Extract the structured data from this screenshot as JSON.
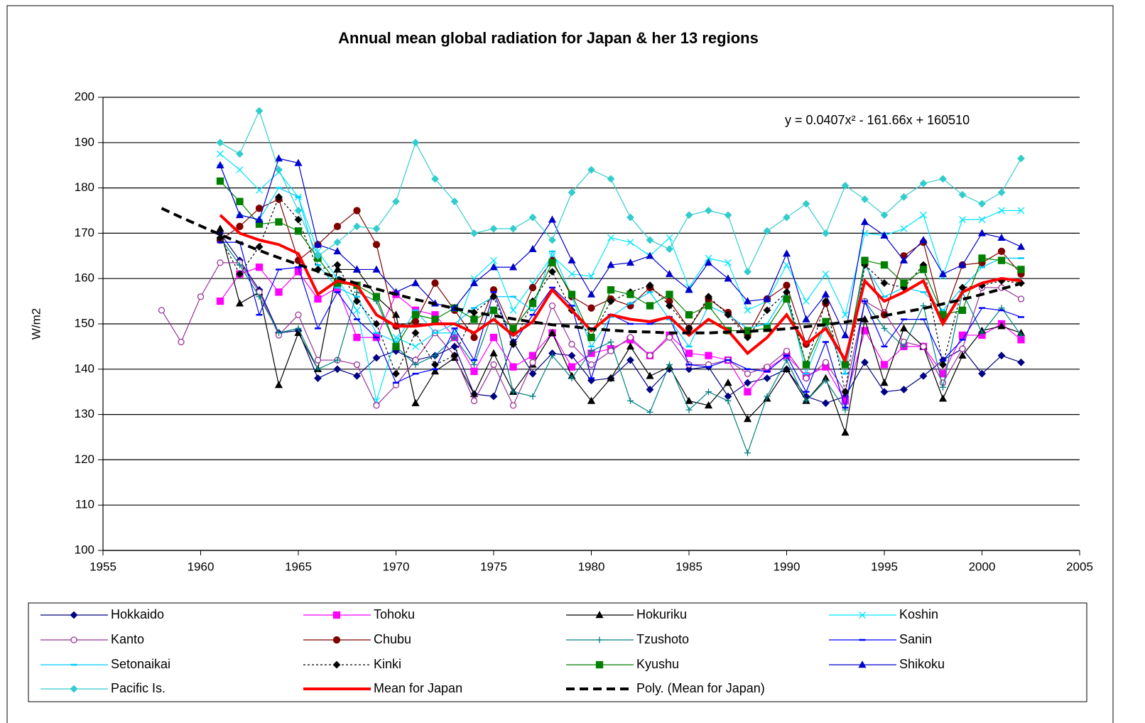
{
  "chart_data": {
    "type": "line",
    "title": "Annual mean global radiation for Japan & her 13 regions",
    "y_label": "W/m2",
    "annotation": "y = 0.0407x² - 161.66x + 160510",
    "xlim": [
      1955,
      2005
    ],
    "xticks": [
      1955,
      1960,
      1965,
      1970,
      1975,
      1980,
      1985,
      1990,
      1995,
      2000,
      2005
    ],
    "ylim": [
      100,
      200
    ],
    "yticks": [
      100,
      110,
      120,
      130,
      140,
      150,
      160,
      170,
      180,
      190,
      200
    ],
    "grid": true,
    "legend": "bottom",
    "x": [
      1958,
      1959,
      1960,
      1961,
      1962,
      1963,
      1964,
      1965,
      1966,
      1967,
      1968,
      1969,
      1970,
      1971,
      1972,
      1973,
      1974,
      1975,
      1976,
      1977,
      1978,
      1979,
      1980,
      1981,
      1982,
      1983,
      1984,
      1985,
      1986,
      1987,
      1988,
      1989,
      1990,
      1991,
      1992,
      1993,
      1994,
      1995,
      1996,
      1997,
      1998,
      1999,
      2000,
      2001,
      2002
    ],
    "series": [
      {
        "name": "Hokkaido",
        "color": "#000080",
        "marker": "diamond",
        "values": [
          null,
          null,
          null,
          170,
          164,
          157.5,
          148,
          148.5,
          138,
          140,
          138.5,
          142.5,
          144,
          142,
          143,
          145,
          134.5,
          134,
          146,
          139,
          143.5,
          143,
          137.5,
          138,
          142,
          135.5,
          140,
          140,
          140.5,
          134,
          137,
          138,
          140,
          134,
          132.5,
          134,
          141.5,
          135,
          135.5,
          138.5,
          142,
          144.5,
          139,
          143,
          141.5
        ]
      },
      {
        "name": "Tohoku",
        "color": "#ff00ff",
        "marker": "square",
        "values": [
          null,
          null,
          null,
          155,
          161,
          162.5,
          157,
          161.5,
          155.5,
          158,
          147,
          147,
          156.5,
          153,
          152,
          147,
          139.5,
          147,
          140.5,
          143,
          148,
          140.5,
          143.5,
          144.5,
          146.5,
          143,
          147.5,
          143.5,
          143,
          142,
          135,
          140,
          143,
          138.5,
          140.5,
          133,
          148.5,
          141,
          145,
          145,
          139,
          147.5,
          147.5,
          150,
          146.5
        ]
      },
      {
        "name": "Hokuriku",
        "color": "#000000",
        "marker": "triangle",
        "values": [
          null,
          null,
          null,
          171,
          154.5,
          157,
          136.5,
          148,
          140,
          162,
          162,
          156,
          152,
          132.5,
          139.5,
          142.5,
          134.5,
          143.5,
          135,
          141,
          148,
          138.5,
          133,
          138,
          145,
          138.5,
          140.5,
          133,
          132,
          137,
          129,
          133.5,
          140,
          133,
          138,
          126,
          151,
          137,
          149,
          145,
          133.5,
          143,
          148.5,
          149.5,
          148
        ]
      },
      {
        "name": "Koshin",
        "color": "#00e5ff",
        "marker": "cross",
        "values": [
          null,
          null,
          null,
          187.5,
          184,
          179.5,
          183.5,
          178,
          166,
          160,
          153,
          133,
          147,
          145,
          148,
          148,
          160,
          164,
          153,
          159,
          165,
          161,
          160.5,
          169,
          168,
          165,
          169,
          158,
          164.5,
          163.5,
          153,
          155,
          163,
          155,
          161,
          152,
          170,
          169.5,
          171,
          174,
          160.5,
          173,
          173,
          175,
          175
        ]
      },
      {
        "name": "Kanto",
        "color": "#993399",
        "marker": "circle-open",
        "values": [
          153,
          146,
          156,
          163.5,
          163.5,
          157,
          147.5,
          152,
          142,
          142,
          141,
          132,
          136.5,
          142,
          148,
          143,
          133,
          141,
          132,
          141.5,
          154,
          145.5,
          141,
          144,
          147,
          143,
          147,
          141,
          141,
          142,
          139,
          140.5,
          144,
          138,
          141.5,
          135,
          155,
          152.5,
          146,
          145,
          137,
          144.5,
          158,
          158,
          155.5
        ]
      },
      {
        "name": "Chubu",
        "color": "#800000",
        "marker": "circle",
        "values": [
          null,
          null,
          null,
          168.5,
          171.5,
          175.5,
          177.5,
          164,
          167.5,
          171.5,
          175,
          167.5,
          149.5,
          150.5,
          159,
          153,
          147,
          157.5,
          148,
          158,
          164,
          156,
          153.5,
          155.5,
          154,
          158,
          155,
          149,
          155.5,
          152.5,
          147.5,
          155.5,
          158.5,
          145.5,
          154.5,
          141,
          164,
          152,
          165,
          168,
          151,
          163,
          163.5,
          166,
          161
        ]
      },
      {
        "name": "Tzushoto",
        "color": "#008080",
        "marker": "plus",
        "values": [
          null,
          null,
          null,
          169,
          163,
          156,
          148,
          149,
          140,
          142,
          157,
          155,
          145,
          141,
          143,
          147,
          141,
          153,
          135,
          134,
          143,
          138,
          144,
          146,
          133,
          130.5,
          141,
          131,
          135,
          133,
          121.5,
          134,
          142,
          133,
          137.5,
          131,
          155,
          149,
          145,
          154,
          136,
          157,
          148,
          153.5,
          147.5
        ]
      },
      {
        "name": "Sanin",
        "color": "#0000ff",
        "marker": "dash",
        "values": [
          null,
          null,
          null,
          168,
          168,
          152,
          162,
          162.5,
          149,
          157,
          151,
          147,
          137,
          139,
          140,
          149,
          142,
          157,
          145.5,
          152,
          158,
          154,
          138,
          152,
          150,
          150,
          151.5,
          141,
          140.5,
          142,
          140,
          139.5,
          143,
          135,
          146,
          131.5,
          155,
          145,
          151,
          151,
          142,
          146.5,
          153.5,
          153,
          151.5
        ]
      },
      {
        "name": "Setonaikai",
        "color": "#00ccff",
        "marker": "dash",
        "values": [
          null,
          null,
          null,
          185,
          174,
          173,
          180,
          178,
          163,
          158,
          156,
          148,
          146,
          153,
          148,
          150,
          153.5,
          156,
          156,
          153,
          166,
          156,
          145,
          151.5,
          154.5,
          157,
          151,
          145,
          154,
          152,
          149,
          150,
          157,
          139,
          150,
          139,
          163,
          156,
          158,
          157,
          153,
          158,
          162.5,
          164.5,
          164.5
        ]
      },
      {
        "name": "Kinki",
        "color": "#000000",
        "marker": "diamond",
        "line_style": "dashed",
        "values": [
          null,
          null,
          null,
          169,
          161,
          167,
          178,
          173,
          162,
          163,
          155,
          150,
          139,
          148,
          141,
          143,
          152.5,
          156,
          145.5,
          155,
          161.5,
          153,
          147,
          155,
          157,
          158.5,
          154,
          149,
          156,
          152,
          147,
          153,
          157,
          141,
          155,
          135,
          163,
          159,
          158,
          163,
          141,
          158,
          158.5,
          159.5,
          159
        ]
      },
      {
        "name": "Kyushu",
        "color": "#008000",
        "marker": "square",
        "values": [
          null,
          null,
          null,
          181.5,
          177,
          172,
          172.5,
          170.5,
          164.5,
          159,
          158.5,
          156,
          145,
          152,
          151,
          153.5,
          151,
          153,
          149,
          154.5,
          163.5,
          156.5,
          147,
          157.5,
          156.5,
          154,
          156.5,
          152,
          154,
          148.5,
          148.5,
          149,
          155.5,
          141,
          150.5,
          141,
          164,
          163,
          159,
          162,
          152,
          153,
          164.5,
          164,
          162
        ]
      },
      {
        "name": "Shikoku",
        "color": "#0000cc",
        "marker": "triangle",
        "values": [
          null,
          null,
          null,
          185,
          174,
          173,
          186.5,
          185.5,
          167.5,
          166,
          162,
          162,
          157,
          159,
          154.5,
          153.5,
          159,
          162.5,
          162.5,
          166.5,
          173,
          164,
          156.5,
          163,
          163.5,
          165,
          161,
          157.5,
          163.5,
          160,
          155,
          155.5,
          165.5,
          151,
          156.5,
          147.5,
          172.5,
          169.5,
          164,
          168.5,
          161,
          163,
          170,
          169,
          167
        ]
      },
      {
        "name": "Pacific Is.",
        "color": "#33cccc",
        "marker": "diamond",
        "values": [
          null,
          null,
          null,
          190,
          187.5,
          197,
          184,
          175,
          165,
          168,
          171.5,
          171,
          177,
          190,
          182,
          177,
          170,
          171,
          171,
          173.5,
          168.5,
          179,
          184,
          182,
          173.5,
          168.5,
          166.5,
          174,
          175,
          174,
          161.5,
          170.5,
          173.5,
          176.5,
          170,
          180.5,
          177.5,
          174,
          178,
          181,
          182,
          178.5,
          176.5,
          179,
          186.5
        ]
      },
      {
        "name": "Mean for Japan",
        "color": "#ff0000",
        "width": 4,
        "values": [
          null,
          null,
          null,
          174,
          170,
          168.5,
          167.5,
          165.5,
          156.5,
          159.5,
          158.5,
          152,
          149.5,
          149.5,
          150,
          150,
          148,
          151,
          147.5,
          150.5,
          157.5,
          153,
          148.5,
          152,
          151,
          150.5,
          151.5,
          147.5,
          151,
          148.5,
          143.5,
          147,
          152,
          145.5,
          149,
          142,
          159.5,
          155,
          157,
          159.5,
          150,
          157,
          159,
          160,
          159.5
        ]
      },
      {
        "name": "Poly. (Mean for Japan)",
        "color": "#000000",
        "width": 4,
        "line_style": "dashed",
        "values": [
          175.5,
          173.5,
          171.6,
          169.7,
          167.9,
          166.2,
          164.6,
          163.1,
          161.6,
          160.2,
          158.9,
          157.7,
          156.5,
          155.4,
          154.4,
          153.4,
          152.6,
          151.8,
          151.1,
          150.4,
          149.8,
          149.4,
          148.9,
          148.6,
          148.3,
          148.2,
          148.0,
          148.0,
          148.0,
          148.2,
          148.3,
          148.6,
          148.9,
          149.4,
          149.8,
          150.4,
          151.1,
          151.8,
          152.6,
          153.4,
          154.4,
          155.4,
          156.5,
          157.7,
          158.9
        ]
      }
    ]
  }
}
